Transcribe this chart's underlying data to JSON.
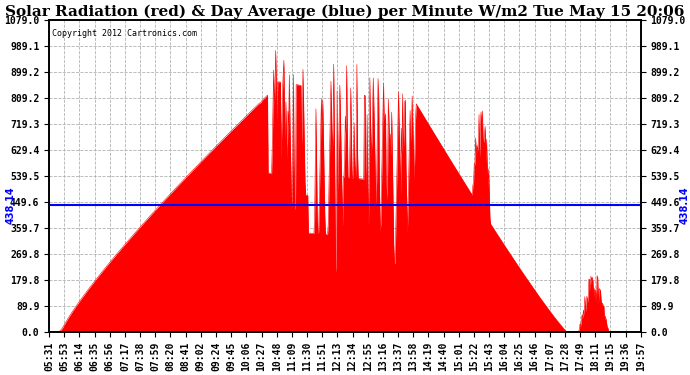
{
  "title": "Solar Radiation (red) & Day Average (blue) per Minute W/m2 Tue May 15 20:06",
  "copyright": "Copyright 2012 Cartronics.com",
  "avg_value": 438.14,
  "ymax": 1079.0,
  "ymin": 0.0,
  "yticks": [
    0.0,
    89.9,
    179.8,
    269.8,
    359.7,
    449.6,
    539.5,
    629.4,
    719.3,
    809.2,
    899.2,
    989.1,
    1079.0
  ],
  "ytick_labels": [
    "0.0",
    "89.9",
    "179.8",
    "269.8",
    "359.7",
    "449.6",
    "539.5",
    "629.4",
    "719.3",
    "809.2",
    "899.2",
    "989.1",
    "1079.0"
  ],
  "xtick_labels": [
    "05:31",
    "05:53",
    "06:14",
    "06:35",
    "06:56",
    "07:17",
    "07:38",
    "07:59",
    "08:20",
    "08:41",
    "09:02",
    "09:24",
    "09:45",
    "10:06",
    "10:27",
    "10:48",
    "11:09",
    "11:30",
    "11:51",
    "12:13",
    "12:34",
    "12:55",
    "13:16",
    "13:37",
    "13:58",
    "14:19",
    "14:40",
    "15:01",
    "15:22",
    "15:43",
    "16:04",
    "16:25",
    "16:46",
    "17:07",
    "17:28",
    "17:49",
    "18:11",
    "19:15",
    "19:36",
    "19:57"
  ],
  "fill_color": "#FF0000",
  "line_color": "#0000FF",
  "background_color": "#FFFFFF",
  "grid_color": "#AAAAAA",
  "title_fontsize": 11,
  "label_fontsize": 7.0,
  "avg_label": "438.14"
}
